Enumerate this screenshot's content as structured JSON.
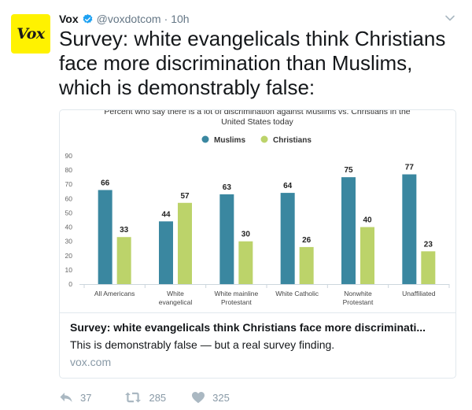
{
  "author": {
    "name": "Vox",
    "handle": "@voxdotcom",
    "time": "10h",
    "avatar_text": "Vox",
    "avatar_color": "#fff200"
  },
  "tweet_text": "Survey: white evangelicals think Christians face more discrimination than Muslims, which is demonstrably false:",
  "card": {
    "title": "Survey: white evangelicals think Christians face more discriminati...",
    "description": "This is demonstrably false — but a real survey finding.",
    "domain": "vox.com"
  },
  "actions": {
    "replies": "37",
    "retweets": "285",
    "likes": "325"
  },
  "colors": {
    "muslims": "#3a87a0",
    "christians": "#bcd36a",
    "verified": "#1da1f2"
  },
  "chart_data": {
    "type": "bar",
    "title": "Percent who say there is a lot of discrimination against Muslims vs. Christians in the United States today",
    "title_lines": [
      "Percent who say there is a lot of discrimination against Muslims vs. Christians in the",
      "United States today"
    ],
    "categories": [
      "All Americans",
      "White evangelical",
      "White mainline Protestant",
      "White Catholic",
      "Nonwhite Protestant",
      "Unaffiliated"
    ],
    "category_lines": [
      [
        "All Americans"
      ],
      [
        "White",
        "evangelical"
      ],
      [
        "White mainline",
        "Protestant"
      ],
      [
        "White Catholic"
      ],
      [
        "Nonwhite",
        "Protestant"
      ],
      [
        "Unaffiliated"
      ]
    ],
    "series": [
      {
        "name": "Muslims",
        "values": [
          66,
          44,
          63,
          64,
          75,
          77
        ]
      },
      {
        "name": "Christians",
        "values": [
          33,
          57,
          30,
          26,
          40,
          23
        ]
      }
    ],
    "ylim": [
      0,
      90
    ],
    "yticks": [
      0,
      10,
      20,
      30,
      40,
      50,
      60,
      70,
      80,
      90
    ],
    "grid": false,
    "legend": "top-center",
    "data_labels": true
  }
}
